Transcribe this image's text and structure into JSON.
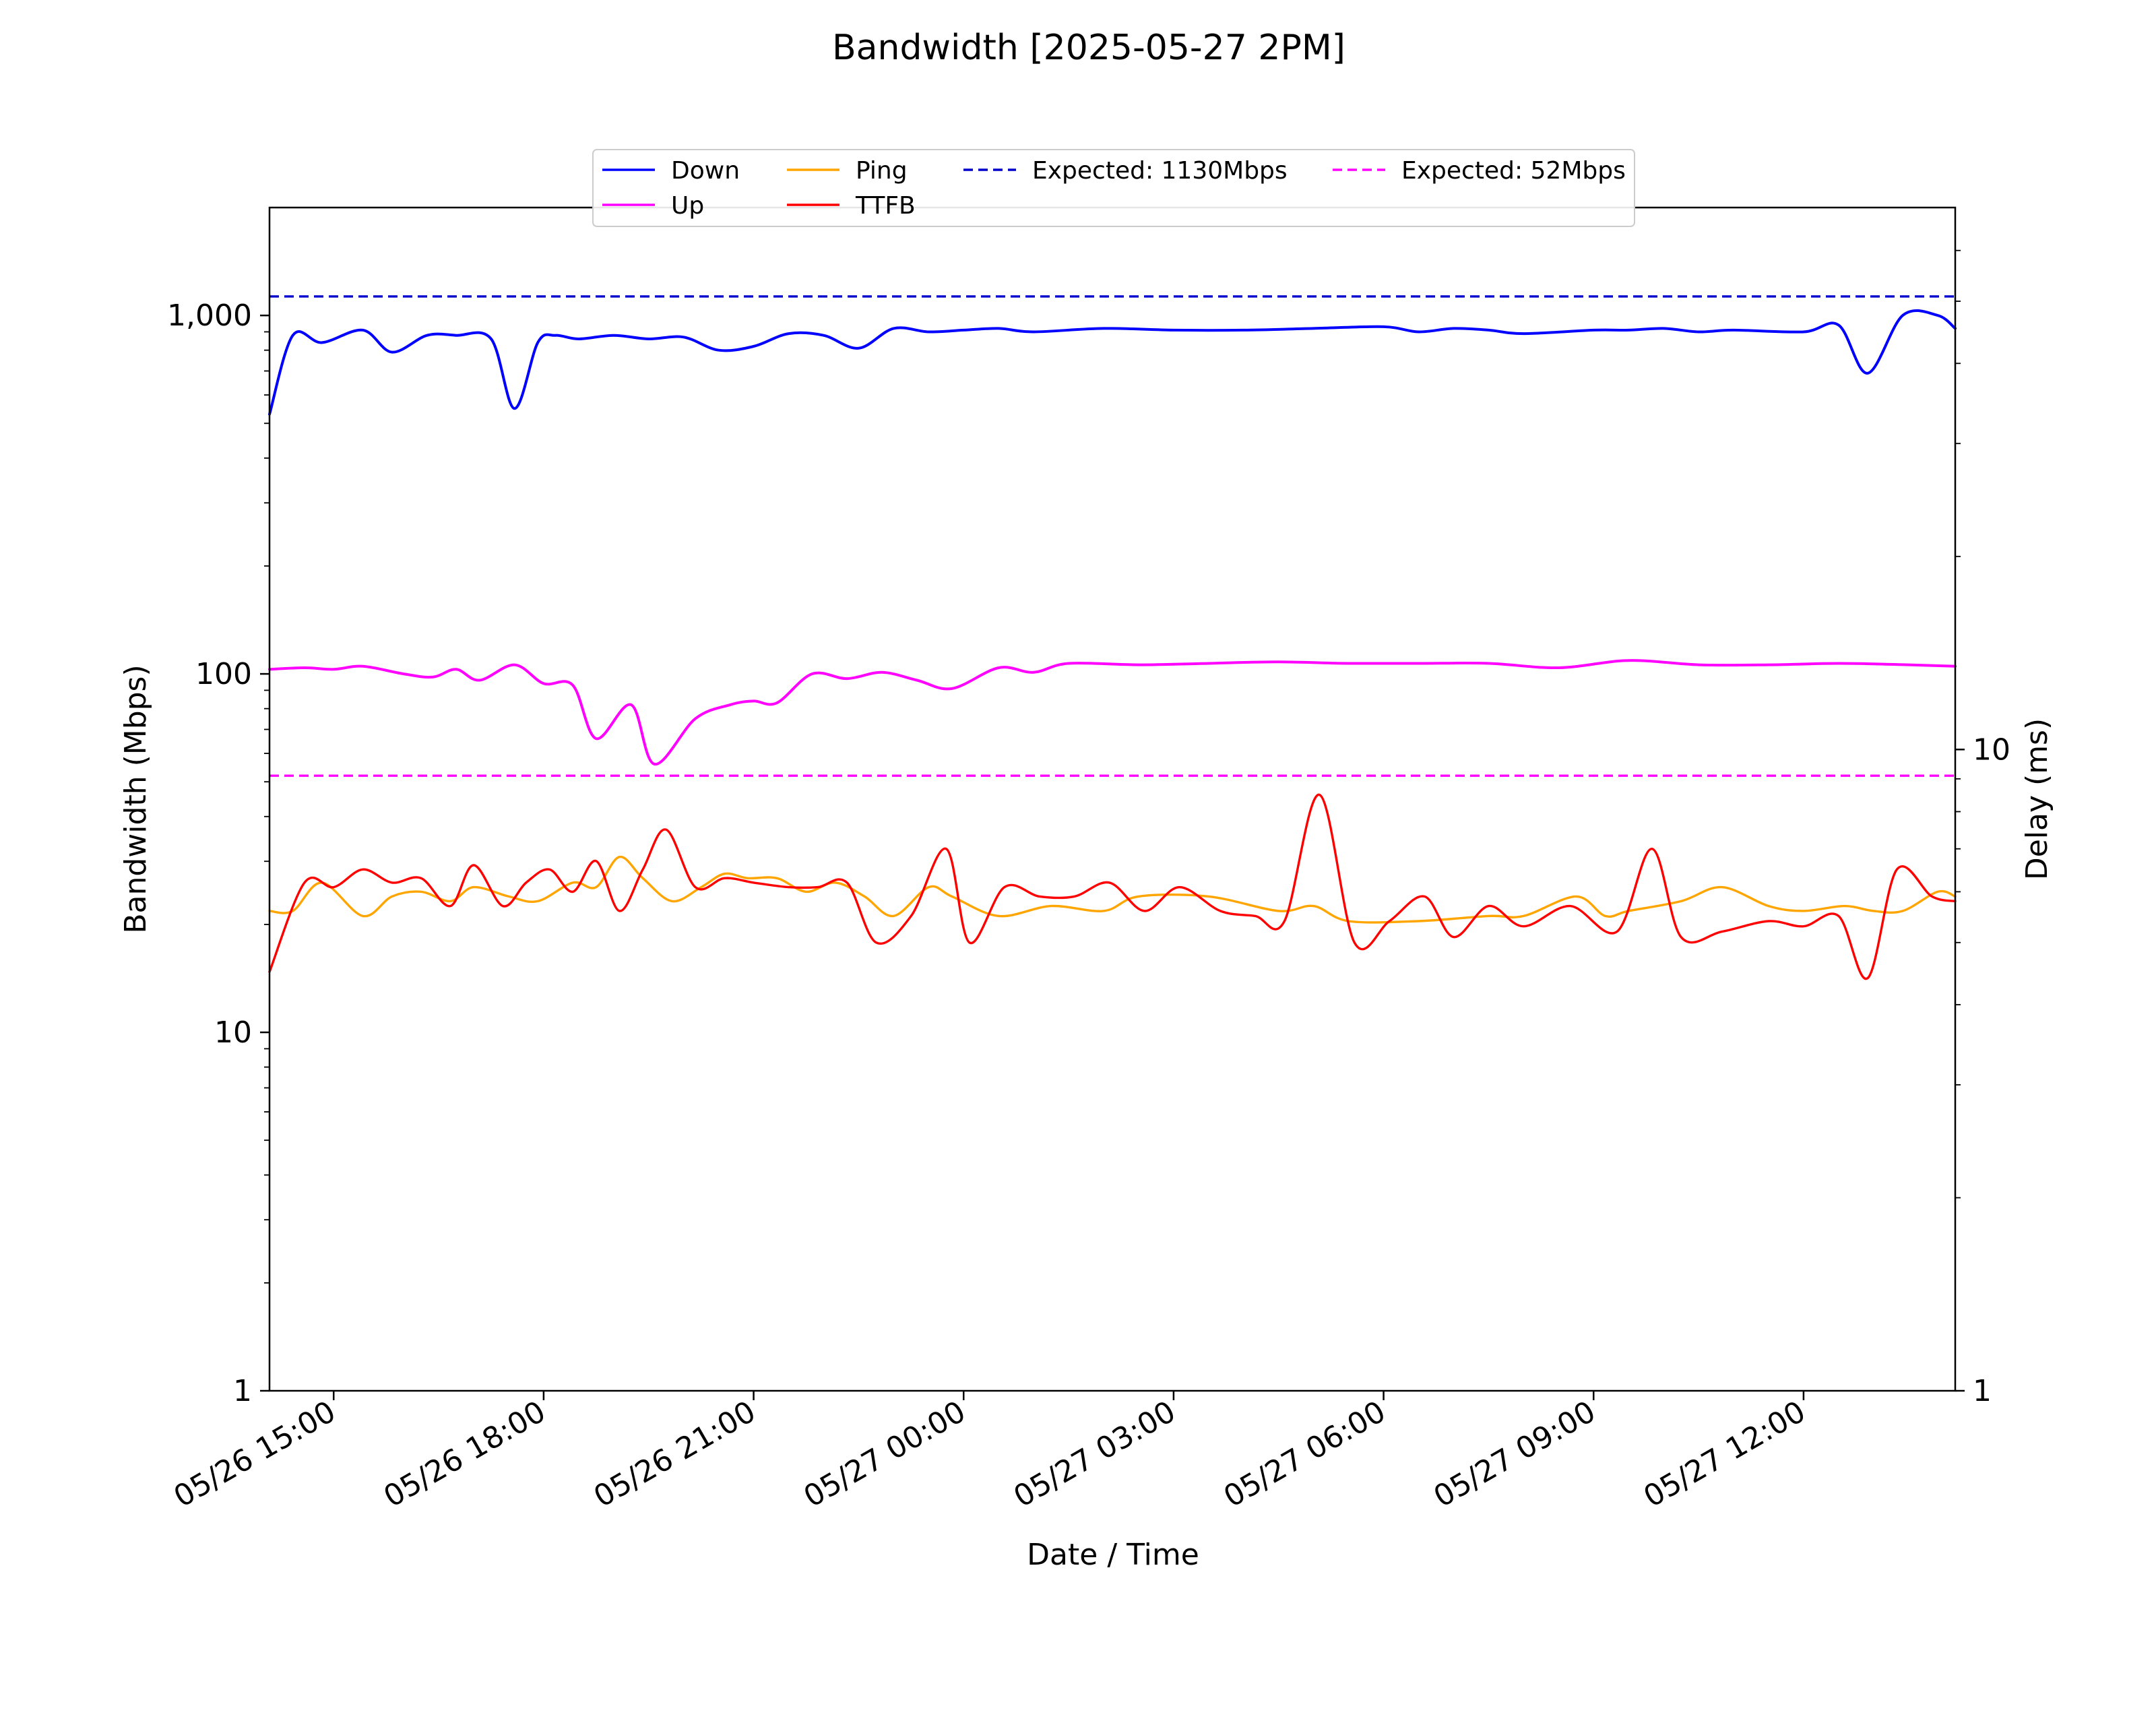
{
  "chart_data": {
    "type": "line",
    "title": "Bandwidth [2025-05-27 2PM]",
    "xlabel": "Date / Time",
    "ylabel": "Bandwidth (Mbps)",
    "y2label": "Delay (ms)",
    "y_scale": "log",
    "ylim": [
      1,
      2000
    ],
    "y2_scale": "log",
    "y2lim": [
      1,
      70
    ],
    "xlim": [
      "2025-05-26 14:05",
      "2025-05-27 14:10"
    ],
    "x_ticks": [
      "05/26 15:00",
      "05/26 18:00",
      "05/26 21:00",
      "05/27 00:00",
      "05/27 03:00",
      "05/27 06:00",
      "05/27 09:00",
      "05/27 12:00"
    ],
    "x_tick_times": [
      "2025-05-26 15:00",
      "2025-05-26 18:00",
      "2025-05-26 21:00",
      "2025-05-27 00:00",
      "2025-05-27 03:00",
      "2025-05-27 06:00",
      "2025-05-27 09:00",
      "2025-05-27 12:00"
    ],
    "y_ticks": [
      1,
      10,
      100,
      1000
    ],
    "y_tick_labels": [
      "1",
      "10",
      "100",
      "1,000"
    ],
    "y2_ticks": [
      1,
      10
    ],
    "y2_tick_labels": [
      "1",
      "10"
    ],
    "grid": false,
    "legend_position": "top-center",
    "series": [
      {
        "name": "Down",
        "axis": "left",
        "color": "#0000ff",
        "style": "solid",
        "x": [
          "2025-05-26 14:05",
          "2025-05-26 14:25",
          "2025-05-26 14:50",
          "2025-05-26 15:25",
          "2025-05-26 15:50",
          "2025-05-26 16:20",
          "2025-05-26 16:45",
          "2025-05-26 17:15",
          "2025-05-26 17:35",
          "2025-05-26 17:55",
          "2025-05-26 18:10",
          "2025-05-26 18:30",
          "2025-05-26 19:00",
          "2025-05-26 19:30",
          "2025-05-26 20:00",
          "2025-05-26 20:30",
          "2025-05-26 21:00",
          "2025-05-26 21:30",
          "2025-05-26 22:00",
          "2025-05-26 22:30",
          "2025-05-26 23:00",
          "2025-05-26 23:30",
          "2025-05-27 00:00",
          "2025-05-27 00:30",
          "2025-05-27 01:00",
          "2025-05-27 02:00",
          "2025-05-27 03:00",
          "2025-05-27 04:00",
          "2025-05-27 05:00",
          "2025-05-27 06:00",
          "2025-05-27 06:30",
          "2025-05-27 07:00",
          "2025-05-27 07:30",
          "2025-05-27 08:00",
          "2025-05-27 09:00",
          "2025-05-27 09:30",
          "2025-05-27 10:00",
          "2025-05-27 10:30",
          "2025-05-27 11:00",
          "2025-05-27 12:00",
          "2025-05-27 12:30",
          "2025-05-27 12:55",
          "2025-05-27 13:25",
          "2025-05-27 13:55",
          "2025-05-27 14:10"
        ],
        "values": [
          530,
          880,
          840,
          910,
          790,
          880,
          880,
          860,
          550,
          840,
          880,
          860,
          880,
          860,
          870,
          800,
          820,
          890,
          880,
          810,
          920,
          900,
          910,
          920,
          900,
          920,
          910,
          910,
          920,
          930,
          900,
          920,
          910,
          890,
          910,
          910,
          920,
          900,
          910,
          900,
          940,
          690,
          1000,
          1000,
          920
        ]
      },
      {
        "name": "Up",
        "axis": "left",
        "color": "#ff00ff",
        "style": "solid",
        "x": [
          "2025-05-26 14:05",
          "2025-05-26 14:35",
          "2025-05-26 15:00",
          "2025-05-26 15:25",
          "2025-05-26 16:00",
          "2025-05-26 16:25",
          "2025-05-26 16:45",
          "2025-05-26 17:05",
          "2025-05-26 17:35",
          "2025-05-26 18:00",
          "2025-05-26 18:25",
          "2025-05-26 18:45",
          "2025-05-26 19:15",
          "2025-05-26 19:35",
          "2025-05-26 20:10",
          "2025-05-26 20:40",
          "2025-05-26 21:00",
          "2025-05-26 21:20",
          "2025-05-26 21:50",
          "2025-05-26 22:20",
          "2025-05-26 22:50",
          "2025-05-26 23:20",
          "2025-05-26 23:50",
          "2025-05-27 00:30",
          "2025-05-27 01:00",
          "2025-05-27 01:30",
          "2025-05-27 02:30",
          "2025-05-27 03:30",
          "2025-05-27 04:30",
          "2025-05-27 05:30",
          "2025-05-27 06:30",
          "2025-05-27 07:30",
          "2025-05-27 08:30",
          "2025-05-27 09:30",
          "2025-05-27 10:30",
          "2025-05-27 11:30",
          "2025-05-27 12:30",
          "2025-05-27 13:30",
          "2025-05-27 14:10"
        ],
        "values": [
          103,
          104,
          103,
          105,
          100,
          98,
          103,
          96,
          106,
          94,
          93,
          66,
          82,
          56,
          75,
          82,
          84,
          83,
          100,
          97,
          101,
          96,
          91,
          104,
          101,
          107,
          106,
          107,
          108,
          107,
          107,
          107,
          104,
          109,
          106,
          106,
          107,
          106,
          105
        ]
      },
      {
        "name": "Ping",
        "axis": "right",
        "color": "#ffa500",
        "style": "solid",
        "x": [
          "2025-05-26 14:05",
          "2025-05-26 14:25",
          "2025-05-26 14:50",
          "2025-05-26 15:25",
          "2025-05-26 15:50",
          "2025-05-26 16:15",
          "2025-05-26 16:40",
          "2025-05-26 17:00",
          "2025-05-26 17:30",
          "2025-05-26 17:55",
          "2025-05-26 18:25",
          "2025-05-26 18:45",
          "2025-05-26 19:05",
          "2025-05-26 19:25",
          "2025-05-26 19:50",
          "2025-05-26 20:15",
          "2025-05-26 20:35",
          "2025-05-26 20:55",
          "2025-05-26 21:20",
          "2025-05-26 21:45",
          "2025-05-26 22:10",
          "2025-05-26 22:35",
          "2025-05-26 23:00",
          "2025-05-26 23:30",
          "2025-05-26 23:50",
          "2025-05-27 00:30",
          "2025-05-27 01:15",
          "2025-05-27 02:00",
          "2025-05-27 02:30",
          "2025-05-27 03:30",
          "2025-05-27 04:30",
          "2025-05-27 05:00",
          "2025-05-27 05:30",
          "2025-05-27 06:30",
          "2025-05-27 07:30",
          "2025-05-27 08:00",
          "2025-05-27 08:45",
          "2025-05-27 09:10",
          "2025-05-27 09:30",
          "2025-05-27 10:15",
          "2025-05-27 10:50",
          "2025-05-27 11:30",
          "2025-05-27 12:00",
          "2025-05-27 12:35",
          "2025-05-27 13:00",
          "2025-05-27 13:25",
          "2025-05-27 13:55",
          "2025-05-27 14:10"
        ],
        "values": [
          5.6,
          5.6,
          6.2,
          5.5,
          5.9,
          6.0,
          5.8,
          6.1,
          5.9,
          5.8,
          6.2,
          6.1,
          6.8,
          6.3,
          5.8,
          6.1,
          6.4,
          6.3,
          6.3,
          6.0,
          6.2,
          5.9,
          5.5,
          6.1,
          5.9,
          5.5,
          5.7,
          5.6,
          5.9,
          5.9,
          5.6,
          5.7,
          5.4,
          5.4,
          5.5,
          5.5,
          5.9,
          5.5,
          5.6,
          5.8,
          6.1,
          5.7,
          5.6,
          5.7,
          5.6,
          5.6,
          6.0,
          5.9
        ]
      },
      {
        "name": "TTFB",
        "axis": "right",
        "color": "#ff0000",
        "style": "solid",
        "x": [
          "2025-05-26 14:05",
          "2025-05-26 14:35",
          "2025-05-26 15:00",
          "2025-05-26 15:25",
          "2025-05-26 15:50",
          "2025-05-26 16:15",
          "2025-05-26 16:40",
          "2025-05-26 17:00",
          "2025-05-26 17:25",
          "2025-05-26 17:45",
          "2025-05-26 18:05",
          "2025-05-26 18:25",
          "2025-05-26 18:45",
          "2025-05-26 19:05",
          "2025-05-26 19:25",
          "2025-05-26 19:45",
          "2025-05-26 20:10",
          "2025-05-26 20:35",
          "2025-05-26 21:00",
          "2025-05-26 21:30",
          "2025-05-26 21:55",
          "2025-05-26 22:20",
          "2025-05-26 22:45",
          "2025-05-26 23:15",
          "2025-05-26 23:45",
          "2025-05-27 00:05",
          "2025-05-27 00:35",
          "2025-05-27 01:05",
          "2025-05-27 01:35",
          "2025-05-27 02:05",
          "2025-05-27 02:35",
          "2025-05-27 03:05",
          "2025-05-27 03:40",
          "2025-05-27 04:10",
          "2025-05-27 04:35",
          "2025-05-27 05:05",
          "2025-05-27 05:35",
          "2025-05-27 06:05",
          "2025-05-27 06:35",
          "2025-05-27 07:00",
          "2025-05-27 07:30",
          "2025-05-27 08:00",
          "2025-05-27 08:40",
          "2025-05-27 09:20",
          "2025-05-27 09:50",
          "2025-05-27 10:15",
          "2025-05-27 10:50",
          "2025-05-27 11:30",
          "2025-05-27 12:00",
          "2025-05-27 12:30",
          "2025-05-27 12:55",
          "2025-05-27 13:20",
          "2025-05-27 13:50",
          "2025-05-27 14:10"
        ],
        "values": [
          4.5,
          6.2,
          6.1,
          6.5,
          6.2,
          6.3,
          5.7,
          6.6,
          5.7,
          6.2,
          6.5,
          6.0,
          6.7,
          5.6,
          6.5,
          7.5,
          6.1,
          6.3,
          6.2,
          6.1,
          6.1,
          6.2,
          5.0,
          5.5,
          7.0,
          5.0,
          6.1,
          5.9,
          5.9,
          6.2,
          5.6,
          6.1,
          5.6,
          5.5,
          5.4,
          8.5,
          5.0,
          5.4,
          5.9,
          5.1,
          5.7,
          5.3,
          5.7,
          5.2,
          7.0,
          5.1,
          5.2,
          5.4,
          5.3,
          5.5,
          4.4,
          6.5,
          5.9,
          5.8
        ]
      },
      {
        "name": "Expected: 1130Mbps",
        "axis": "left",
        "color": "#0000cc",
        "style": "dashed",
        "x": [
          "2025-05-26 14:05",
          "2025-05-27 14:10"
        ],
        "values": [
          1130,
          1130
        ]
      },
      {
        "name": "Expected: 52Mbps",
        "axis": "left",
        "color": "#ff00ff",
        "style": "dashed",
        "x": [
          "2025-05-26 14:05",
          "2025-05-27 14:10"
        ],
        "values": [
          52,
          52
        ]
      }
    ]
  }
}
